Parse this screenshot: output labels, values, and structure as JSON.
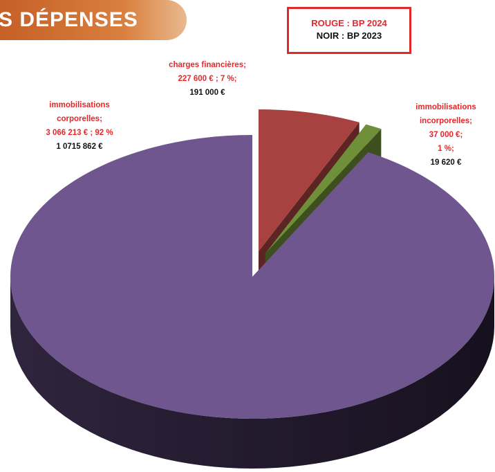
{
  "title": "S DÉPENSES",
  "chart_data": {
    "type": "pie",
    "categories": [
      "immobilisations corporelles;",
      "charges financières;",
      "immobilisations incorporelles;"
    ],
    "colors": [
      "#6f568e",
      "#a84240",
      "#6f9038"
    ],
    "explode": [
      0,
      1,
      1
    ],
    "series": [
      {
        "name": "ROUGE : BP 2024",
        "color": "#e8262a",
        "values": [
          3066213,
          227600,
          37000
        ],
        "value_labels": [
          "3 066 213 €",
          "227 600 €",
          "37 000 €;"
        ],
        "percents": [
          92,
          7,
          1
        ],
        "percent_labels": [
          "; 92 %",
          "; 7 %;",
          "1 %;"
        ]
      },
      {
        "name": "NOIR : BP 2023",
        "color": "#111111",
        "values": [
          10715862,
          191000,
          19620
        ],
        "value_labels": [
          "1 0715 862 €",
          "191 000 €",
          "19 620 €"
        ]
      }
    ]
  }
}
